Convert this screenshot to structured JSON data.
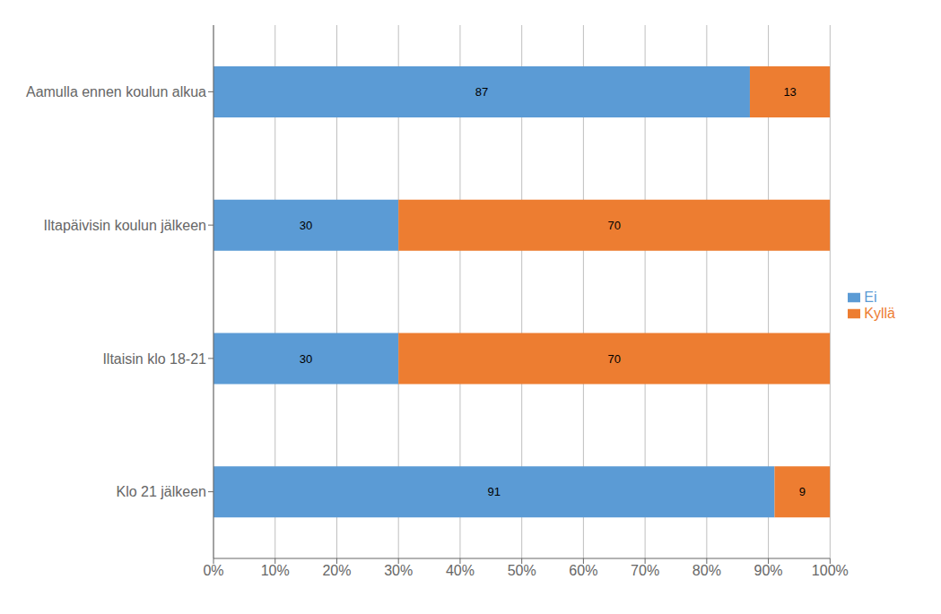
{
  "chart_data": {
    "type": "bar",
    "orientation": "horizontal",
    "stacked": true,
    "categories": [
      "Aamulla ennen koulun alkua",
      "Iltapäivisin koulun jälkeen",
      "Iltaisin klo 18-21",
      "Klo 21 jälkeen"
    ],
    "series": [
      {
        "name": "Ei",
        "color": "#5B9BD5",
        "values": [
          87,
          30,
          30,
          91
        ]
      },
      {
        "name": "Kyllä",
        "color": "#ED7D31",
        "values": [
          13,
          70,
          70,
          9
        ]
      }
    ],
    "xlim": [
      0,
      100
    ],
    "xticks": [
      {
        "value": 0,
        "label": "0%"
      },
      {
        "value": 10,
        "label": "10%"
      },
      {
        "value": 20,
        "label": "20%"
      },
      {
        "value": 30,
        "label": "30%"
      },
      {
        "value": 40,
        "label": "40%"
      },
      {
        "value": 50,
        "label": "50%"
      },
      {
        "value": 60,
        "label": "60%"
      },
      {
        "value": 70,
        "label": "70%"
      },
      {
        "value": 80,
        "label": "80%"
      },
      {
        "value": 90,
        "label": "90%"
      },
      {
        "value": 100,
        "label": "100%"
      }
    ],
    "grid": true,
    "data_labels": true,
    "legend": "right"
  }
}
